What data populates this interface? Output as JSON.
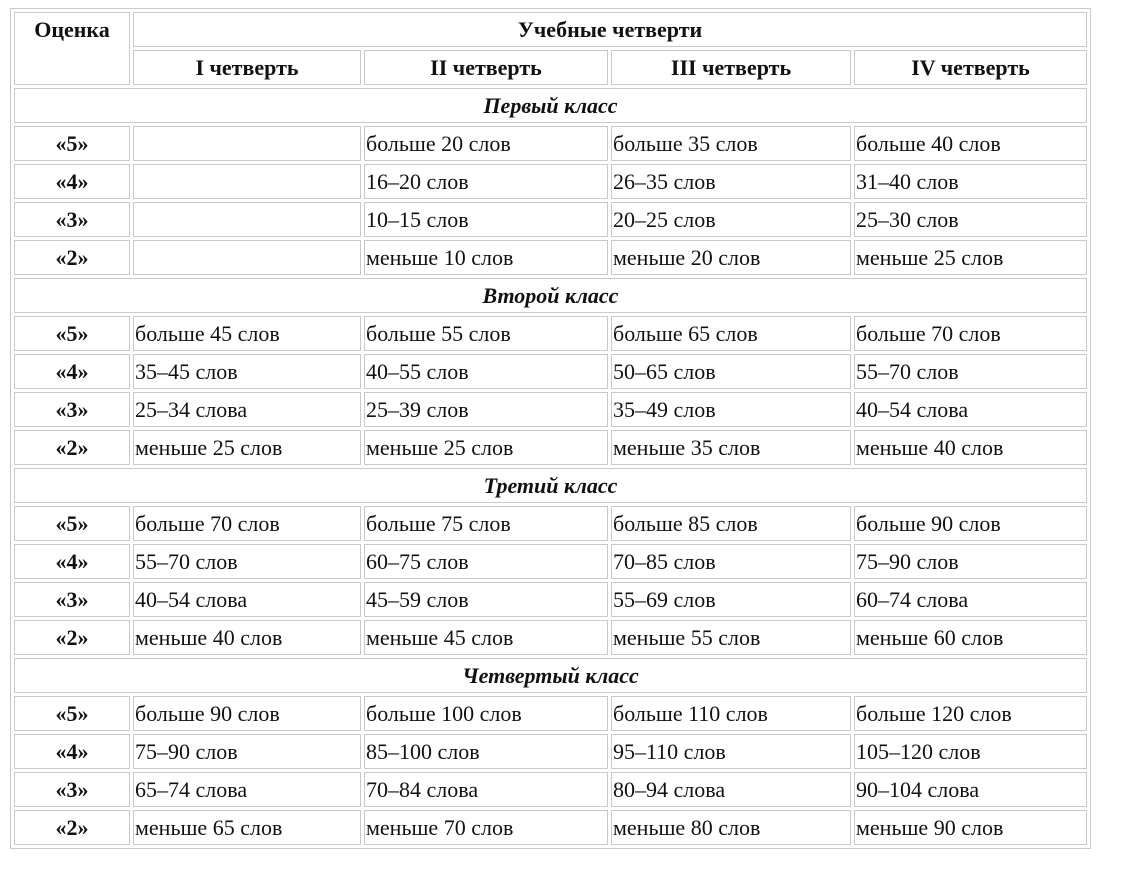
{
  "table": {
    "header": {
      "grade_label": "Оценка",
      "group_label": "Учебные четверти",
      "quarters": [
        "I четверть",
        "II четверть",
        "III четверть",
        "IV четверть"
      ]
    },
    "sections": [
      {
        "title": "Первый класс",
        "rows": [
          {
            "grade": "«5»",
            "cells": [
              "",
              "больше 20 слов",
              "больше 35 слов",
              "больше 40 слов"
            ]
          },
          {
            "grade": "«4»",
            "cells": [
              "",
              "16–20 слов",
              "26–35 слов",
              "31–40 слов"
            ]
          },
          {
            "grade": "«3»",
            "cells": [
              "",
              "10–15 слов",
              "20–25 слов",
              "25–30 слов"
            ]
          },
          {
            "grade": "«2»",
            "cells": [
              "",
              "меньше 10 слов",
              "меньше 20 слов",
              "меньше 25 слов"
            ]
          }
        ]
      },
      {
        "title": "Второй класс",
        "rows": [
          {
            "grade": "«5»",
            "cells": [
              "больше 45 слов",
              "больше 55 слов",
              "больше 65 слов",
              "больше 70 слов"
            ]
          },
          {
            "grade": "«4»",
            "cells": [
              "35–45 слов",
              "40–55 слов",
              "50–65 слов",
              "55–70 слов"
            ]
          },
          {
            "grade": "«3»",
            "cells": [
              "25–34 слова",
              "25–39 слов",
              "35–49 слов",
              "40–54 слова"
            ]
          },
          {
            "grade": "«2»",
            "cells": [
              "меньше 25 слов",
              "меньше 25 слов",
              "меньше 35 слов",
              "меньше 40 слов"
            ]
          }
        ]
      },
      {
        "title": "Третий класс",
        "rows": [
          {
            "grade": "«5»",
            "cells": [
              "больше 70 слов",
              "больше 75 слов",
              "больше 85 слов",
              "больше 90 слов"
            ]
          },
          {
            "grade": "«4»",
            "cells": [
              "55–70 слов",
              "60–75 слов",
              "70–85 слов",
              "75–90 слов"
            ]
          },
          {
            "grade": "«3»",
            "cells": [
              "40–54 слова",
              "45–59 слов",
              "55–69 слов",
              "60–74 слова"
            ]
          },
          {
            "grade": "«2»",
            "cells": [
              "меньше 40 слов",
              "меньше 45 слов",
              "меньше 55 слов",
              "меньше 60 слов"
            ]
          }
        ]
      },
      {
        "title": "Четвертый класс",
        "rows": [
          {
            "grade": "«5»",
            "cells": [
              "больше 90 слов",
              "больше 100 слов",
              "больше 110 слов",
              "больше 120 слов"
            ]
          },
          {
            "grade": "«4»",
            "cells": [
              "75–90 слов",
              "85–100 слов",
              "95–110 слов",
              "105–120 слов"
            ]
          },
          {
            "grade": "«3»",
            "cells": [
              "65–74 слова",
              "70–84 слова",
              "80–94 слова",
              "90–104 слова"
            ]
          },
          {
            "grade": "«2»",
            "cells": [
              "меньше 65 слов",
              "меньше 70 слов",
              "меньше 80 слов",
              "меньше 90 слов"
            ]
          }
        ]
      }
    ]
  }
}
